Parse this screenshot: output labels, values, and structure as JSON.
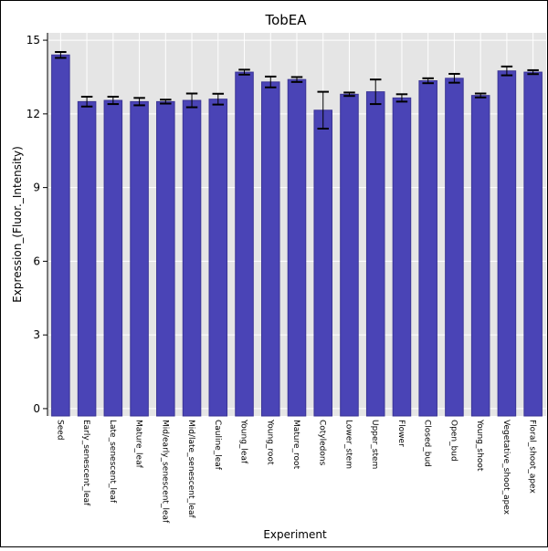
{
  "chart_data": {
    "type": "bar",
    "title": "TobEA",
    "xlabel": "Experiment",
    "ylabel": "Expression_(Fluor._Intensity)",
    "ylim": [
      -0.3,
      15.3
    ],
    "yticks": [
      0,
      3,
      6,
      9,
      12,
      15
    ],
    "grid": true,
    "categories": [
      "Seed",
      "Early_senescent_leaf",
      "Late_senescent_leaf",
      "Mature_leaf",
      "Mid/early_senescent_leaf",
      "Mid/late_senescent_leaf",
      "Cauline_leaf",
      "Young_leaf",
      "Young_root",
      "Mature_root",
      "Cotyledons",
      "Lower_stem",
      "Upper_stem",
      "Flower",
      "Closed_bud",
      "Open_bud",
      "Young_shoot",
      "Vegetative_shoot_apex",
      "Floral_shoot_apex"
    ],
    "values": [
      14.4,
      12.5,
      12.55,
      12.5,
      12.5,
      12.55,
      12.6,
      13.7,
      13.3,
      13.4,
      12.15,
      12.8,
      12.9,
      12.65,
      13.35,
      13.45,
      12.75,
      13.75,
      13.7
    ],
    "errors": [
      0.12,
      0.2,
      0.15,
      0.15,
      0.08,
      0.28,
      0.22,
      0.1,
      0.22,
      0.1,
      0.75,
      0.07,
      0.5,
      0.15,
      0.1,
      0.18,
      0.08,
      0.18,
      0.08
    ],
    "colors": {
      "bar": "#4a44b6",
      "bar_edge": "#3b3595",
      "plot_bg": "#e5e5e5",
      "grid": "#ffffff",
      "error_bar": "#000000"
    }
  }
}
